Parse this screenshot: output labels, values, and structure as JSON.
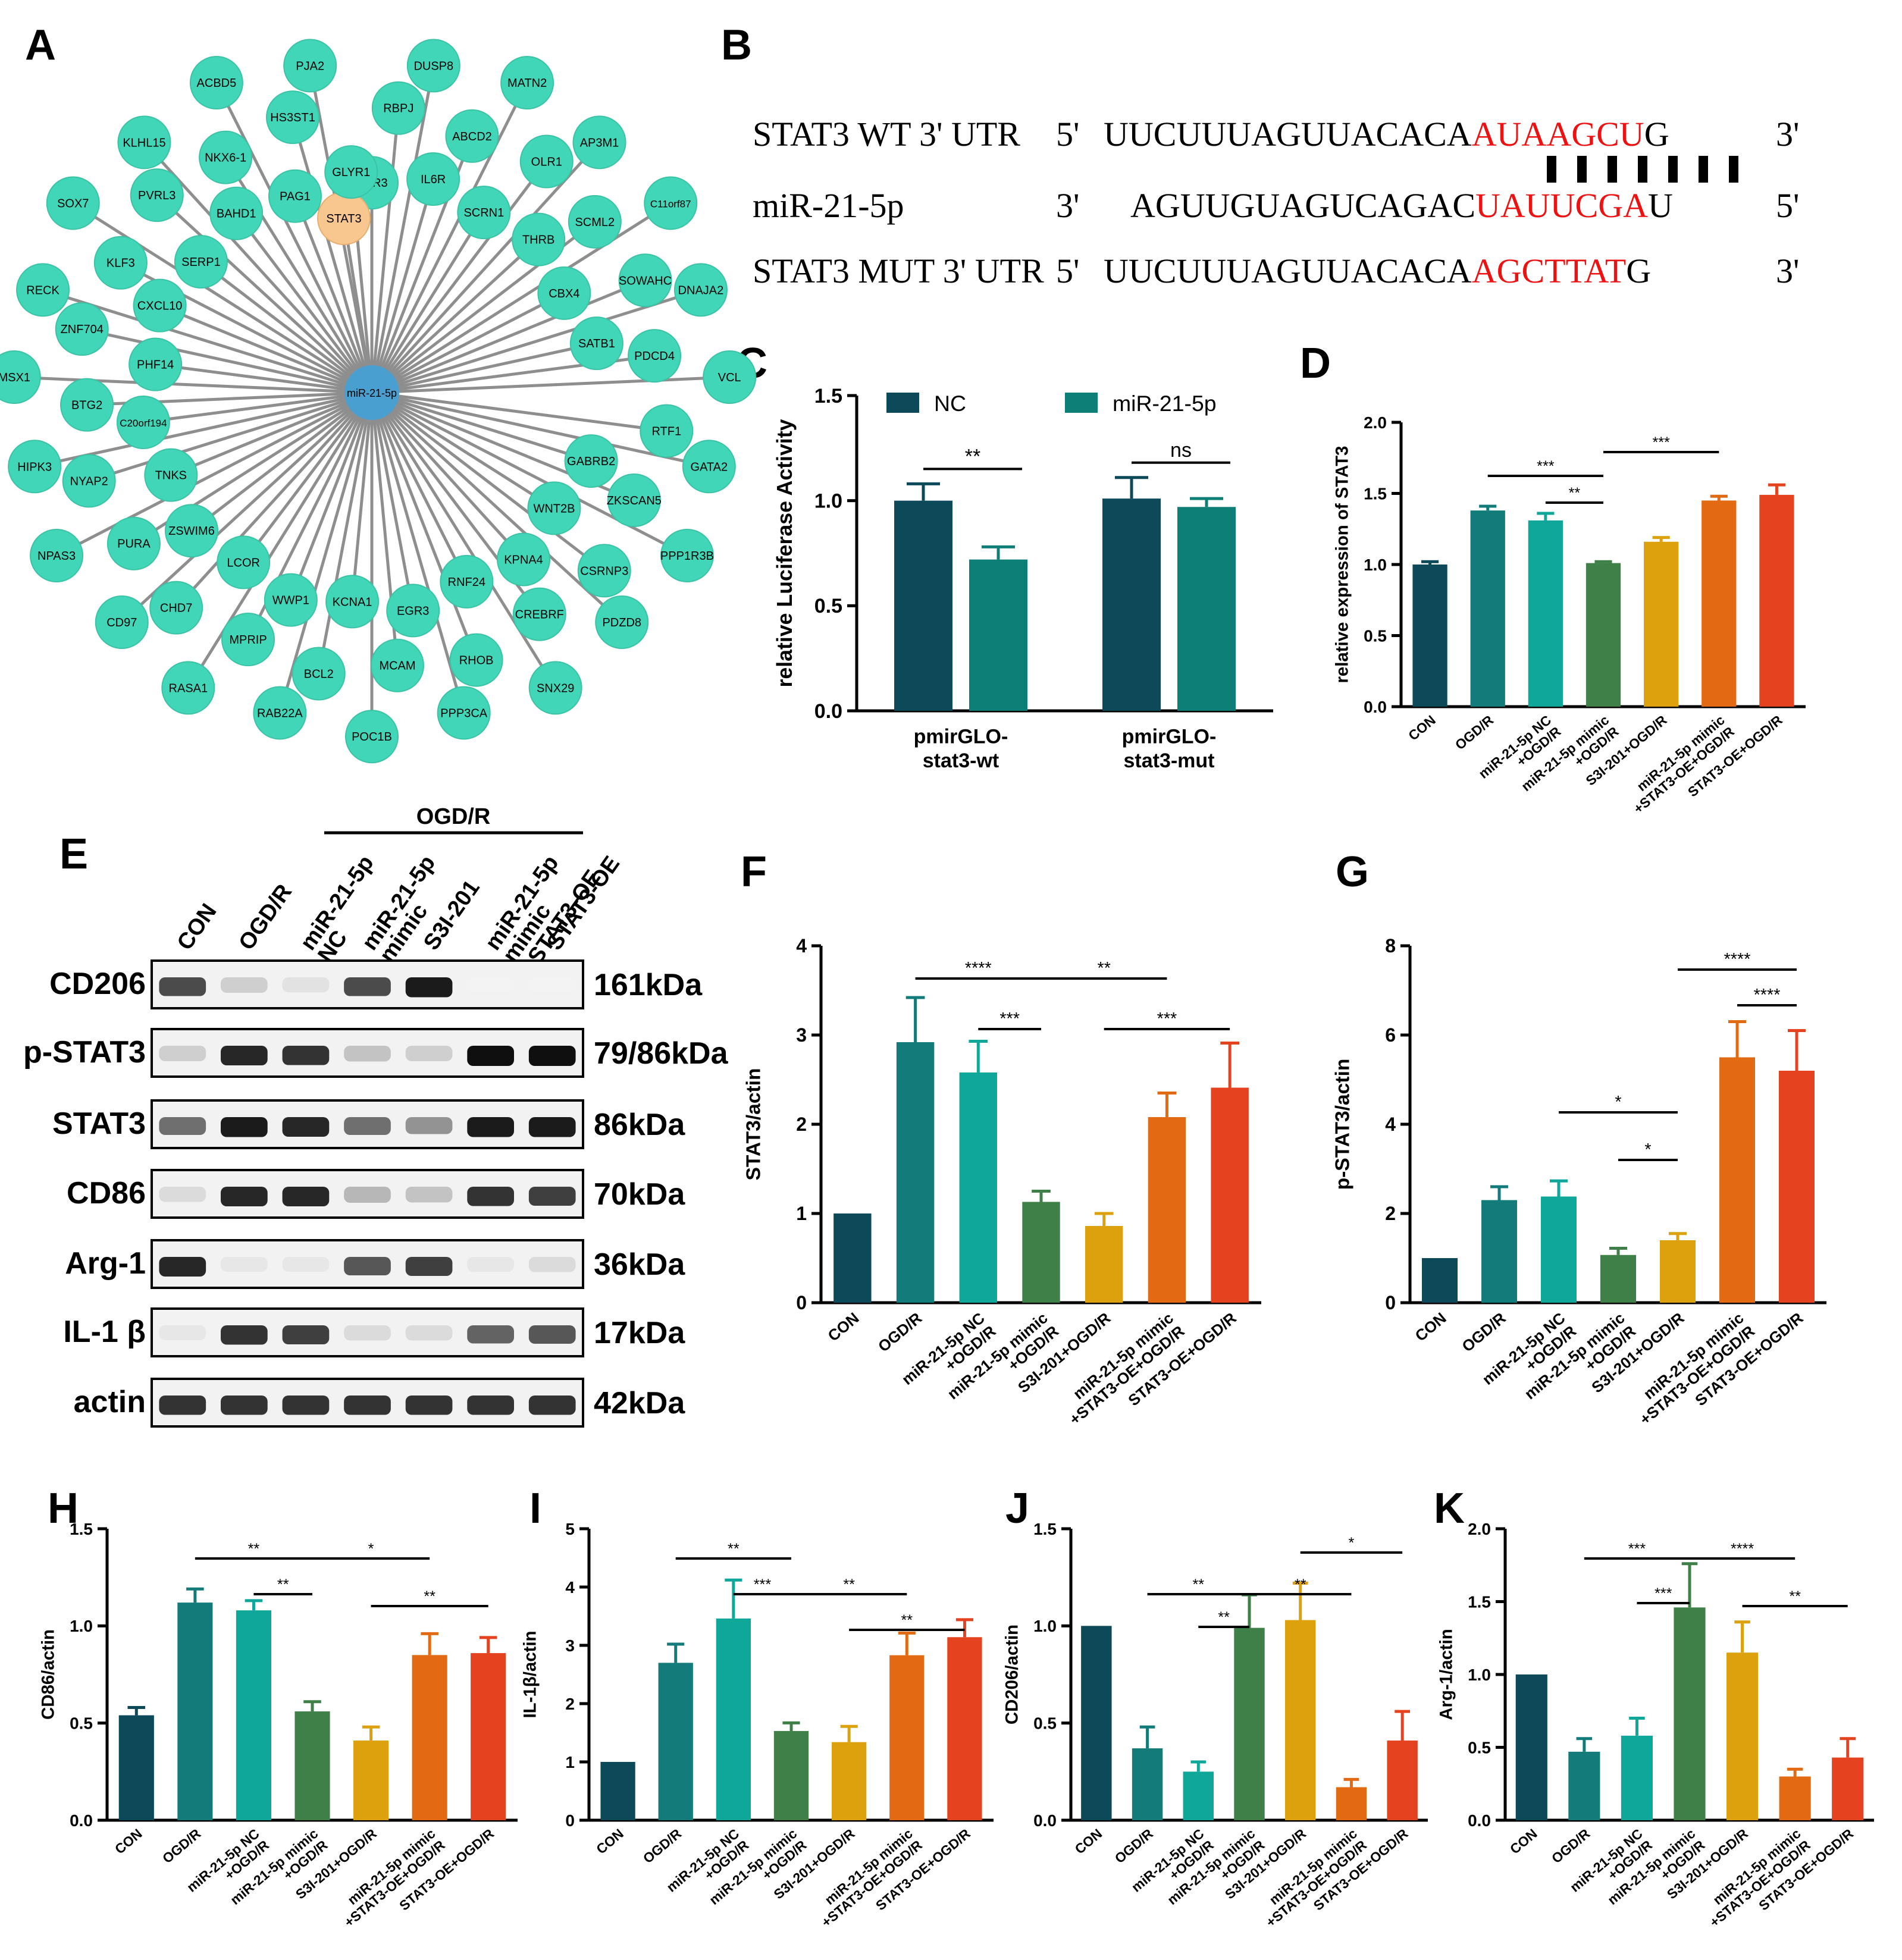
{
  "colors": {
    "con": "#0c4a5a",
    "ogdr": "#137c7a",
    "nc": "#0fa79a",
    "mimic": "#3f7f48",
    "s3i": "#dca10c",
    "mimic_oe": "#e26a12",
    "oe": "#e5421f",
    "node": "#40d6b7",
    "node_edge": "#3bc3a6",
    "stat3_node": "#f8c68f",
    "hub": "#4a9fd1",
    "red": "#ee1111"
  },
  "panel_letters": [
    "A",
    "B",
    "C",
    "D",
    "E",
    "F",
    "G",
    "H",
    "I",
    "J",
    "K"
  ],
  "network": {
    "hub": "miR-21-5p",
    "highlight": "STAT3",
    "nodes": [
      "UBR3",
      "RBPJ",
      "DUSP8",
      "IL6R",
      "ABCD2",
      "MATN2",
      "SCRN1",
      "OLR1",
      "AP3M1",
      "THRB",
      "SCML2",
      "C11orf87",
      "CBX4",
      "SOWAHC",
      "DNAJA2",
      "SATB1",
      "PDCD4",
      "VCL",
      "STAT3",
      "RTF1",
      "GATA2",
      "GABRB2",
      "ZKSCAN5",
      "PPP1R3B",
      "WNT2B",
      "CSRNP3",
      "PDZD8",
      "KPNA4",
      "CREBRF",
      "SNX29",
      "RNF24",
      "RHOB",
      "PPP3CA",
      "EGR3",
      "MCAM",
      "POC1B",
      "KCNA1",
      "BCL2",
      "RAB22A",
      "WWP1",
      "MPRIP",
      "RASA1",
      "LCOR",
      "CHD7",
      "CD97",
      "ZSWIM6",
      "PURA",
      "NPAS3",
      "TNKS",
      "NYAP2",
      "HIPK3",
      "C20orf194",
      "BTG2",
      "MSX1",
      "PHF14",
      "ZNF704",
      "RECK",
      "CXCL10",
      "KLF3",
      "SOX7",
      "SERP1",
      "PVRL3",
      "KLHL15",
      "BAHD1",
      "NKX6-1",
      "ACBD5",
      "PAG1",
      "HS3ST1",
      "PJA2",
      "GLYR1"
    ]
  },
  "sequences": {
    "rows": [
      {
        "label": "STAT3 WT 3' UTR",
        "end5": "5'",
        "seq_black": "UUCUUUAGUUACACA",
        "seq_red": "AUAAGCU",
        "seq_tail": "G",
        "end3": "3'"
      },
      {
        "label": "miR-21-5p",
        "end5": "3'",
        "seq_black": "AGUUGUAGUCAGAC",
        "seq_red": "UAUUCGA",
        "seq_tail": "U",
        "end3": "5'"
      },
      {
        "label": "STAT3 MUT 3' UTR",
        "end5": "5'",
        "seq_black": "UUCUUUAGUUACACA",
        "seq_red": "AGCTTAT",
        "seq_tail": "G",
        "end3": "3'"
      }
    ]
  },
  "chart_data": [
    {
      "panel": "C",
      "type": "bar",
      "ylabel": "relative Luciferase Activity",
      "ylim": [
        0,
        1.5
      ],
      "yticks": [
        "0.0",
        "0.5",
        "1.0",
        "1.5"
      ],
      "categories": [
        "pmirGLO-\nstat3-wt",
        "pmirGLO-\nstat3-mut"
      ],
      "series": [
        {
          "name": "NC",
          "values": [
            1.0,
            1.01
          ],
          "errors": [
            0.08,
            0.1
          ]
        },
        {
          "name": "miR-21-5p",
          "values": [
            0.72,
            0.97
          ],
          "errors": [
            0.06,
            0.04
          ]
        }
      ],
      "legend": "top",
      "annotations": [
        "**",
        "ns"
      ]
    },
    {
      "panel": "D",
      "type": "bar",
      "ylabel": "relative expression of STAT3",
      "ylim": [
        0,
        2.0
      ],
      "yticks": [
        "0.0",
        "0.5",
        "1.0",
        "1.5",
        "2.0"
      ],
      "categories": [
        "CON",
        "OGD/R",
        "miR-21-5p NC\n+OGD/R",
        "miR-21-5p mimic\n+OGD/R",
        "S3I-201+OGD/R",
        "miR-21-5p mimic\n+STAT3-OE+OGD/R",
        "STAT3-OE+OGD/R"
      ],
      "values": [
        1.0,
        1.38,
        1.31,
        1.01,
        1.16,
        1.45,
        1.49
      ],
      "errors": [
        0.02,
        0.03,
        0.05,
        0.01,
        0.03,
        0.03,
        0.07
      ],
      "annotations": [
        "***",
        "**",
        "***"
      ]
    },
    {
      "panel": "F",
      "type": "bar",
      "ylabel": "STAT3/actin",
      "ylim": [
        0,
        4
      ],
      "yticks": [
        "0",
        "1",
        "2",
        "3",
        "4"
      ],
      "categories": [
        "CON",
        "OGD/R",
        "miR-21-5p NC\n+OGD/R",
        "miR-21-5p mimic\n+OGD/R",
        "S3I-201+OGD/R",
        "miR-21-5p mimic\n+STAT3-OE+OGD/R",
        "STAT3-OE+OGD/R"
      ],
      "values": [
        1.0,
        2.92,
        2.58,
        1.13,
        0.86,
        2.08,
        2.41
      ],
      "errors": [
        0.0,
        0.5,
        0.35,
        0.12,
        0.14,
        0.27,
        0.5
      ],
      "annotations": [
        "****",
        "**",
        "***",
        "***"
      ]
    },
    {
      "panel": "G",
      "type": "bar",
      "ylabel": "p-STAT3/actin",
      "ylim": [
        0,
        8
      ],
      "yticks": [
        "0",
        "2",
        "4",
        "6",
        "8"
      ],
      "categories": [
        "CON",
        "OGD/R",
        "miR-21-5p NC\n+OGD/R",
        "miR-21-5p mimic\n+OGD/R",
        "S3I-201+OGD/R",
        "miR-21-5p mimic\n+STAT3-OE+OGD/R",
        "STAT3-OE+OGD/R"
      ],
      "values": [
        1.0,
        2.3,
        2.38,
        1.07,
        1.4,
        5.5,
        5.2
      ],
      "errors": [
        0.0,
        0.3,
        0.35,
        0.15,
        0.15,
        0.8,
        0.9
      ],
      "annotations": [
        "*",
        "*",
        "****",
        "****"
      ]
    },
    {
      "panel": "H",
      "type": "bar",
      "ylabel": "CD86/actin",
      "ylim": [
        0,
        1.5
      ],
      "yticks": [
        "0.0",
        "0.5",
        "1.0",
        "1.5"
      ],
      "categories": [
        "CON",
        "OGD/R",
        "miR-21-5p NC\n+OGD/R",
        "miR-21-5p mimic\n+OGD/R",
        "S3I-201+OGD/R",
        "miR-21-5p mimic\n+STAT3-OE+OGD/R",
        "STAT3-OE+OGD/R"
      ],
      "values": [
        0.54,
        1.12,
        1.08,
        0.56,
        0.41,
        0.85,
        0.86
      ],
      "errors": [
        0.04,
        0.07,
        0.05,
        0.05,
        0.07,
        0.11,
        0.08
      ],
      "annotations": [
        "**",
        "**",
        "*",
        "**"
      ]
    },
    {
      "panel": "I",
      "type": "bar",
      "ylabel": "IL-1β/actin",
      "ylim": [
        0,
        5
      ],
      "yticks": [
        "0",
        "1",
        "2",
        "3",
        "4",
        "5"
      ],
      "categories": [
        "CON",
        "OGD/R",
        "miR-21-5p NC\n+OGD/R",
        "miR-21-5p mimic\n+OGD/R",
        "S3I-201+OGD/R",
        "miR-21-5p mimic\n+STAT3-OE+OGD/R",
        "STAT3-OE+OGD/R"
      ],
      "values": [
        1.0,
        2.7,
        3.46,
        1.53,
        1.34,
        2.83,
        3.14
      ],
      "errors": [
        0.0,
        0.32,
        0.66,
        0.14,
        0.27,
        0.38,
        0.3
      ],
      "annotations": [
        "**",
        "***",
        "**",
        "**"
      ]
    },
    {
      "panel": "J",
      "type": "bar",
      "ylabel": "CD206/actin",
      "ylim": [
        0,
        1.5
      ],
      "yticks": [
        "0.0",
        "0.5",
        "1.0",
        "1.5"
      ],
      "categories": [
        "CON",
        "OGD/R",
        "miR-21-5p NC\n+OGD/R",
        "miR-21-5p mimic\n+OGD/R",
        "S3I-201+OGD/R",
        "miR-21-5p mimic\n+STAT3-OE+OGD/R",
        "STAT3-OE+OGD/R"
      ],
      "values": [
        1.0,
        0.37,
        0.25,
        0.99,
        1.03,
        0.17,
        0.41
      ],
      "errors": [
        0.0,
        0.11,
        0.05,
        0.17,
        0.19,
        0.04,
        0.15
      ],
      "annotations": [
        "**",
        "**",
        "**",
        "*"
      ]
    },
    {
      "panel": "K",
      "type": "bar",
      "ylabel": "Arg-1/actin",
      "ylim": [
        0,
        2.0
      ],
      "yticks": [
        "0.0",
        "0.5",
        "1.0",
        "1.5",
        "2.0"
      ],
      "categories": [
        "CON",
        "OGD/R",
        "miR-21-5p NC\n+OGD/R",
        "miR-21-5p mimic\n+OGD/R",
        "S3I-201+OGD/R",
        "miR-21-5p mimic\n+STAT3-OE+OGD/R",
        "STAT3-OE+OGD/R"
      ],
      "values": [
        1.0,
        0.47,
        0.58,
        1.46,
        1.15,
        0.3,
        0.43
      ],
      "errors": [
        0.0,
        0.09,
        0.12,
        0.3,
        0.21,
        0.05,
        0.13
      ],
      "annotations": [
        "***",
        "***",
        "****",
        "**"
      ]
    }
  ],
  "western": {
    "header": "OGD/R",
    "lanes": [
      "CON",
      "OGD/R",
      "miR-21-5p\nNC",
      "miR-21-5p\nmimic",
      "S3I-201",
      "miR-21-5p\nmimic\n+STAT3-OE",
      "STAT3-OE"
    ],
    "rows": [
      {
        "name": "CD206",
        "size": "161kDa",
        "intensity": [
          0.75,
          0.2,
          0.12,
          0.75,
          0.95,
          0.05,
          0.05
        ]
      },
      {
        "name": "p-STAT3",
        "size": "79/86kDa",
        "intensity": [
          0.2,
          0.9,
          0.85,
          0.25,
          0.2,
          1.0,
          1.0
        ]
      },
      {
        "name": "STAT3",
        "size": "86kDa",
        "intensity": [
          0.6,
          0.95,
          0.9,
          0.6,
          0.45,
          0.95,
          0.95
        ]
      },
      {
        "name": "CD86",
        "size": "70kDa",
        "intensity": [
          0.15,
          0.9,
          0.9,
          0.3,
          0.25,
          0.85,
          0.8
        ]
      },
      {
        "name": "Arg-1",
        "size": "36kDa",
        "intensity": [
          0.9,
          0.1,
          0.1,
          0.7,
          0.8,
          0.1,
          0.15
        ]
      },
      {
        "name": "IL-1 β",
        "size": "17kDa",
        "intensity": [
          0.1,
          0.85,
          0.8,
          0.15,
          0.15,
          0.65,
          0.7
        ]
      },
      {
        "name": "actin",
        "size": "42kDa",
        "intensity": [
          0.85,
          0.85,
          0.85,
          0.85,
          0.85,
          0.85,
          0.85
        ]
      }
    ]
  }
}
